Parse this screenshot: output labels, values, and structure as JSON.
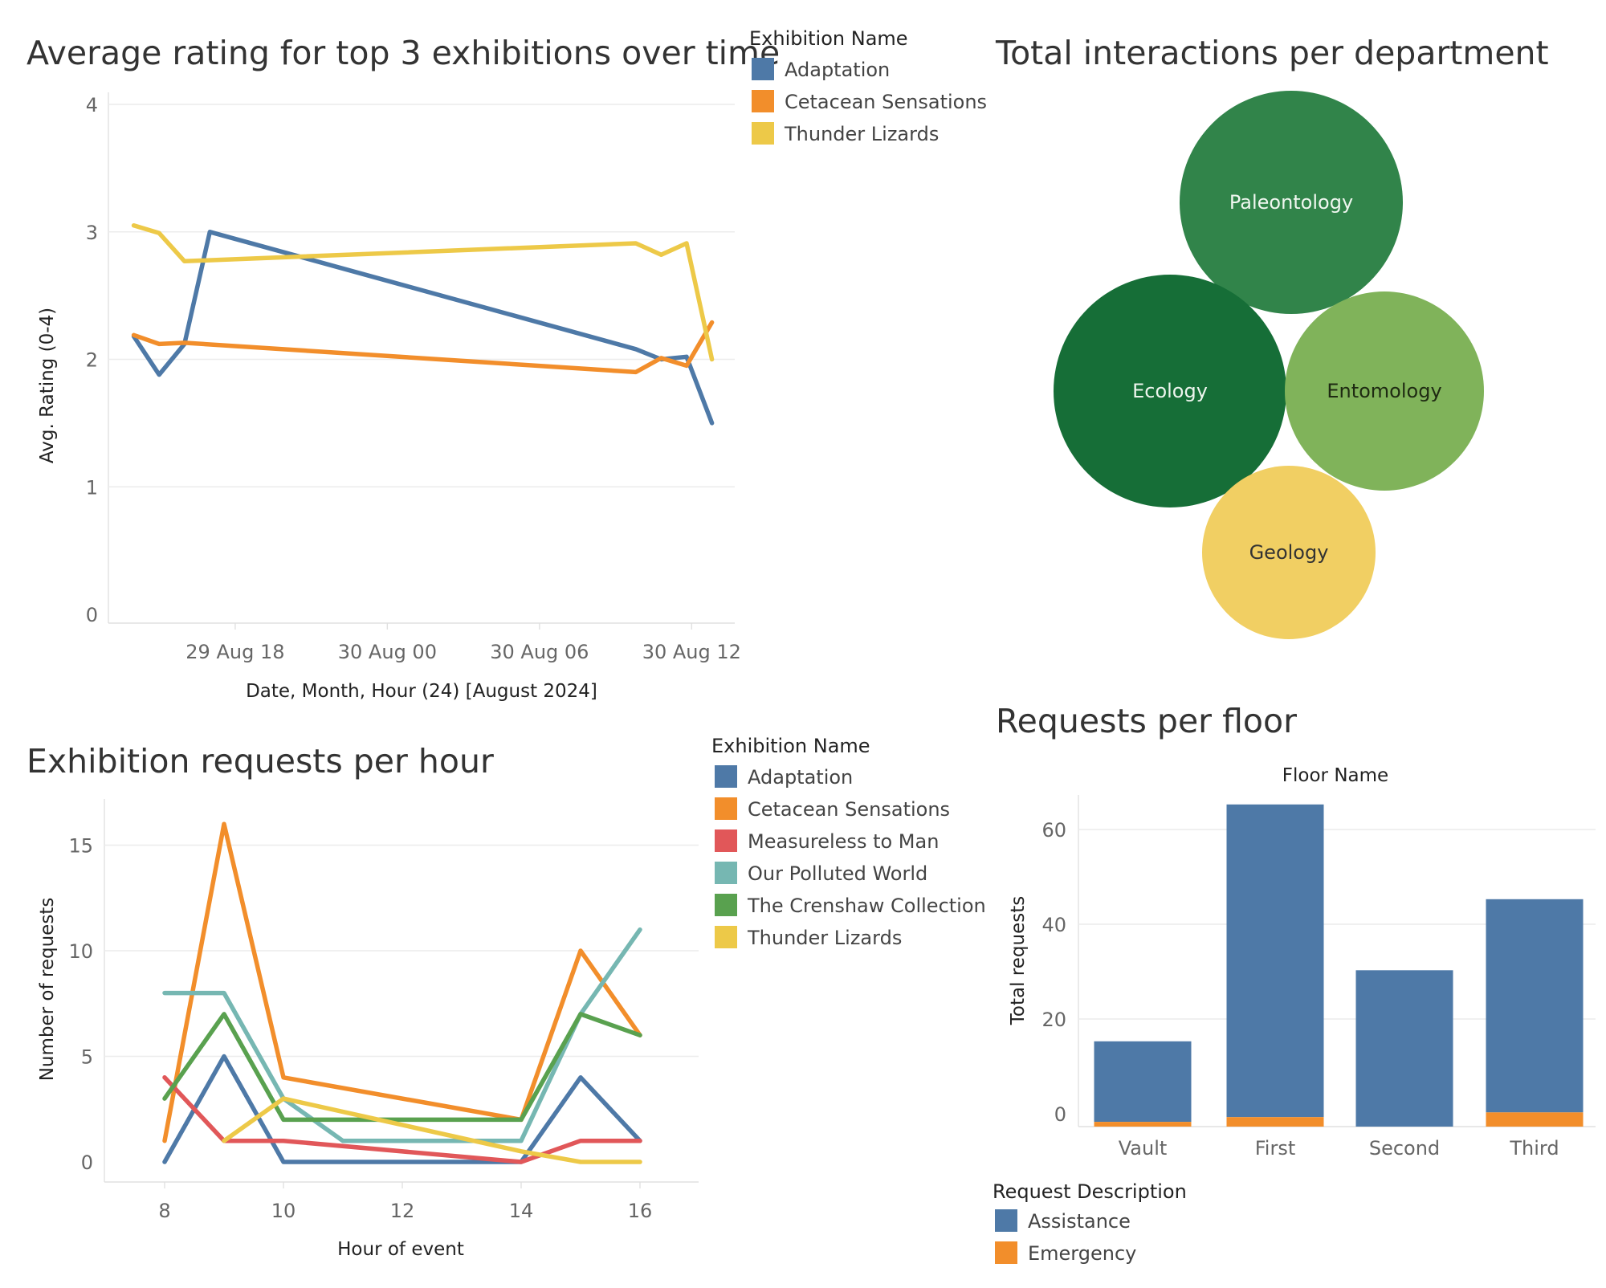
{
  "chart_data": [
    {
      "type": "line",
      "title": "Average rating for top 3 exhibitions over time",
      "xlabel": "Date, Month, Hour (24) [August 2024]",
      "ylabel": "Avg. Rating (0-4)",
      "ylim": [
        0,
        4
      ],
      "yticks": [
        "0",
        "1",
        "2",
        "3",
        "4"
      ],
      "xticks": [
        {
          "label": "29 Aug 18",
          "x": 18
        },
        {
          "label": "30 Aug 00",
          "x": 24
        },
        {
          "label": "30 Aug 06",
          "x": 30
        },
        {
          "label": "30 Aug 12",
          "x": 36
        }
      ],
      "xunit": "hours from 29 Aug 00:00",
      "xlim": [
        13,
        37.7
      ],
      "legend_title": "Exhibition Name",
      "legend": "right",
      "grid": true,
      "series": [
        {
          "name": "Adaptation",
          "color": "#4e79a7",
          "points": [
            [
              14,
              2.18
            ],
            [
              15,
              1.88
            ],
            [
              16,
              2.12
            ],
            [
              17,
              3.0
            ],
            [
              33.8,
              2.08
            ],
            [
              34.8,
              2.0
            ],
            [
              35.8,
              2.02
            ],
            [
              36.8,
              1.5
            ]
          ]
        },
        {
          "name": "Cetacean Sensations",
          "color": "#f28e2b",
          "points": [
            [
              14,
              2.19
            ],
            [
              15,
              2.12
            ],
            [
              16,
              2.13
            ],
            [
              33.8,
              1.9
            ],
            [
              34.8,
              2.01
            ],
            [
              35.8,
              1.95
            ],
            [
              36.8,
              2.29
            ]
          ]
        },
        {
          "name": "Thunder Lizards",
          "color": "#edc948",
          "points": [
            [
              14,
              3.05
            ],
            [
              15,
              2.99
            ],
            [
              16,
              2.77
            ],
            [
              33.8,
              2.91
            ],
            [
              34.8,
              2.82
            ],
            [
              35.8,
              2.91
            ],
            [
              36.8,
              2.0
            ]
          ]
        }
      ]
    },
    {
      "type": "bubble",
      "title": "Total interactions per department",
      "bubbles": [
        {
          "label": "Paleontology",
          "color": "#31844a",
          "text_color": "#f0f7f0",
          "rel_size": 1.0
        },
        {
          "label": "Ecology",
          "color": "#166e37",
          "text_color": "#eef5ee",
          "rel_size": 1.05
        },
        {
          "label": "Entomology",
          "color": "#80b35a",
          "text_color": "#1e2a12",
          "rel_size": 0.9
        },
        {
          "label": "Geology",
          "color": "#f1cf63",
          "text_color": "#333333",
          "rel_size": 0.78
        }
      ]
    },
    {
      "type": "line",
      "title": "Exhibition requests per hour",
      "xlabel": "Hour of event",
      "ylabel": "Number of requests",
      "xlim": [
        7,
        17
      ],
      "ylim": [
        0,
        17.5
      ],
      "xticks": [
        8,
        10,
        12,
        14,
        16
      ],
      "yticks": [
        0,
        5,
        10,
        15
      ],
      "legend_title": "Exhibition Name",
      "legend": "right",
      "grid": true,
      "series": [
        {
          "name": "Adaptation",
          "color": "#4e79a7",
          "points": [
            [
              8,
              0
            ],
            [
              9,
              5
            ],
            [
              10,
              0
            ],
            [
              14,
              0
            ],
            [
              15,
              4
            ],
            [
              16,
              1
            ]
          ]
        },
        {
          "name": "Cetacean Sensations",
          "color": "#f28e2b",
          "points": [
            [
              8,
              1
            ],
            [
              9,
              16
            ],
            [
              10,
              4
            ],
            [
              14,
              2
            ],
            [
              15,
              10
            ],
            [
              16,
              6
            ]
          ]
        },
        {
          "name": "Measureless to Man",
          "color": "#e15759",
          "points": [
            [
              8,
              4
            ],
            [
              9,
              1
            ],
            [
              10,
              1
            ],
            [
              14,
              0
            ],
            [
              15,
              1
            ],
            [
              16,
              1
            ]
          ]
        },
        {
          "name": "Our Polluted World",
          "color": "#76b7b2",
          "points": [
            [
              8,
              8
            ],
            [
              9,
              8
            ],
            [
              10,
              3
            ],
            [
              11,
              1
            ],
            [
              14,
              1
            ],
            [
              15,
              7
            ],
            [
              16,
              11
            ]
          ]
        },
        {
          "name": "The Crenshaw Collection",
          "color": "#59a14f",
          "points": [
            [
              8,
              3
            ],
            [
              9,
              7
            ],
            [
              10,
              2
            ],
            [
              14,
              2
            ],
            [
              15,
              7
            ],
            [
              16,
              6
            ]
          ]
        },
        {
          "name": "Thunder Lizards",
          "color": "#edc948",
          "points": [
            [
              9,
              1
            ],
            [
              10,
              3
            ],
            [
              14,
              0.5
            ],
            [
              15,
              0
            ],
            [
              16,
              0
            ]
          ]
        }
      ]
    },
    {
      "type": "bar",
      "stacked": true,
      "title": "Requests per floor",
      "column_header": "Floor Name",
      "ylabel": "Total requests",
      "ylim": [
        -3,
        70
      ],
      "yticks": [
        0,
        20,
        40,
        60
      ],
      "categories": [
        "Vault",
        "First",
        "Second",
        "Third"
      ],
      "legend_title": "Request Description",
      "legend": "bottom-left",
      "grid": true,
      "series": [
        {
          "name": "Assistance",
          "color": "#4e79a7",
          "values": [
            17,
            66,
            33,
            45
          ]
        },
        {
          "name": "Emergency",
          "color": "#f28e2b",
          "values": [
            1,
            2,
            0,
            3
          ]
        }
      ]
    }
  ]
}
